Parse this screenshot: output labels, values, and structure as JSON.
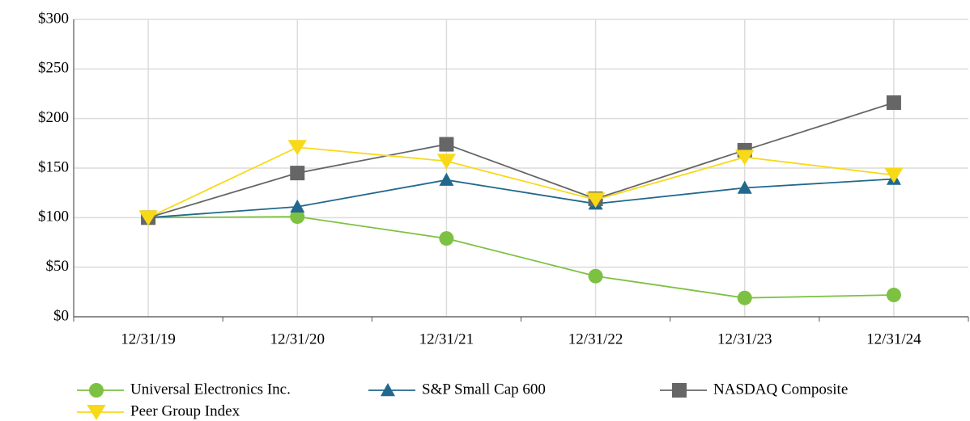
{
  "chart_data": {
    "type": "line",
    "categories": [
      "12/31/19",
      "12/31/20",
      "12/31/21",
      "12/31/22",
      "12/31/23",
      "12/31/24"
    ],
    "series": [
      {
        "name": "Universal Electronics Inc.",
        "color": "#7dc142",
        "marker": "circle",
        "values": [
          100,
          101,
          79,
          41,
          19,
          22
        ]
      },
      {
        "name": "S&P Small Cap 600",
        "color": "#21688c",
        "marker": "triangle-up",
        "values": [
          100,
          111,
          138,
          114,
          130,
          139
        ]
      },
      {
        "name": "NASDAQ Composite",
        "color": "#666666",
        "marker": "square",
        "values": [
          100,
          145,
          174,
          119,
          168,
          216
        ]
      },
      {
        "name": "Peer Group Index",
        "color": "#f7d918",
        "marker": "triangle-down",
        "values": [
          100,
          171,
          157,
          118,
          161,
          143
        ]
      }
    ],
    "ylim": [
      0,
      300
    ],
    "yticks": [
      {
        "value": 0,
        "label": "$0"
      },
      {
        "value": 50,
        "label": "$50"
      },
      {
        "value": 100,
        "label": "$100"
      },
      {
        "value": 150,
        "label": "$150"
      },
      {
        "value": 200,
        "label": "$200"
      },
      {
        "value": 250,
        "label": "$250"
      },
      {
        "value": 300,
        "label": "$300"
      }
    ],
    "grid": true,
    "legend": "bottom"
  }
}
